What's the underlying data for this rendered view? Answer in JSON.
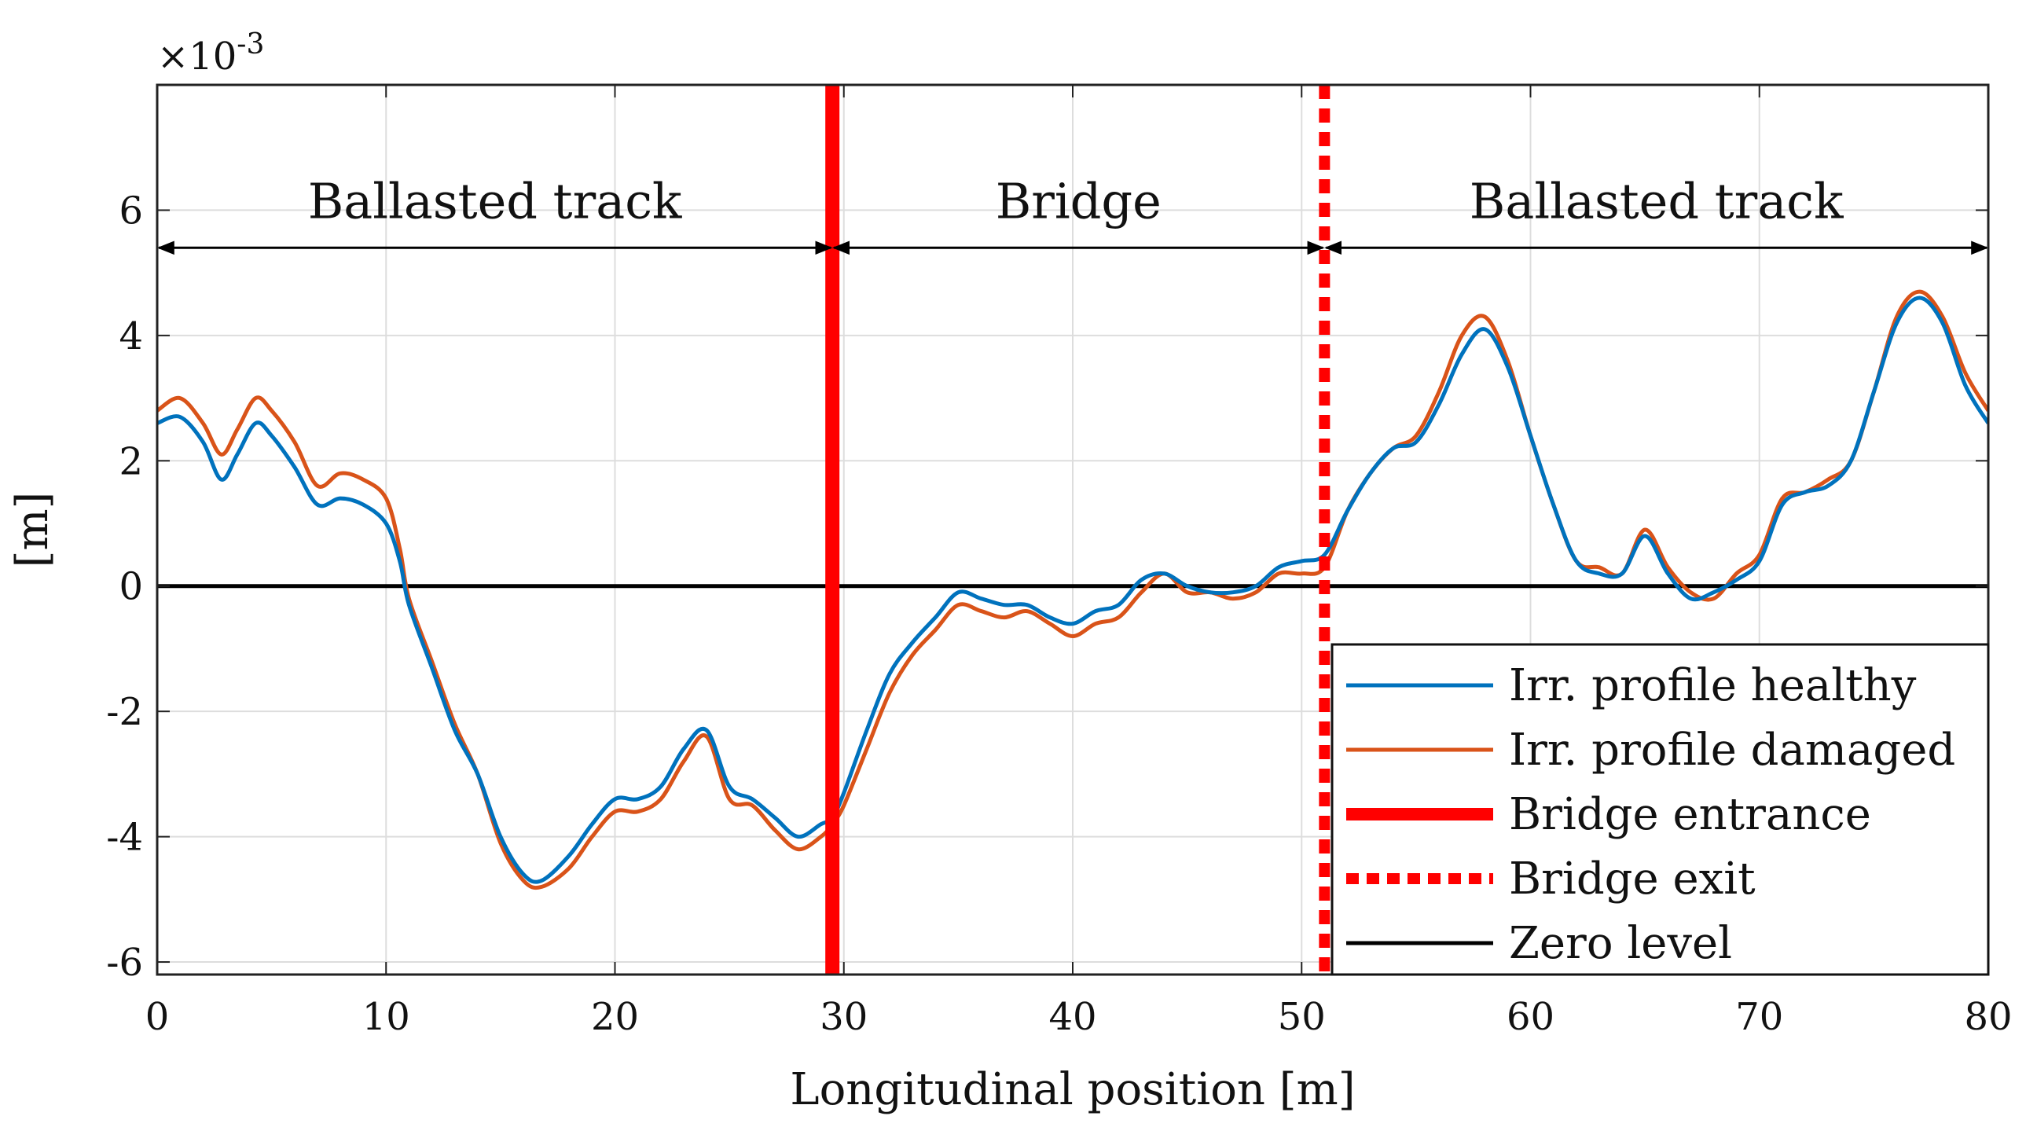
{
  "chart_data": {
    "type": "line",
    "title": "",
    "xlabel": "Longitudinal position [m]",
    "ylabel": "[m]",
    "y_multiplier_label": "×10",
    "y_multiplier_exponent": "-3",
    "xlim": [
      0,
      80
    ],
    "ylim": [
      -6.2,
      8
    ],
    "x_ticks": [
      0,
      10,
      20,
      30,
      40,
      50,
      60,
      70,
      80
    ],
    "x_tick_labels": [
      "0",
      "10",
      "20",
      "30",
      "40",
      "50",
      "60",
      "70",
      "80"
    ],
    "y_ticks": [
      -6,
      -4,
      -2,
      0,
      2,
      4,
      6
    ],
    "y_tick_labels": [
      "-6",
      "-4",
      "-2",
      "0",
      "2",
      "4",
      "6"
    ],
    "grid": true,
    "legend_position": "bottom-right",
    "colors": {
      "healthy": "#0072BD",
      "damaged": "#D95319",
      "bridge_marker": "#FF0000",
      "zero_level": "#000000",
      "grid": "#dddddd"
    },
    "series": [
      {
        "name": "Irr. profile healthy",
        "x": [
          0,
          1,
          2,
          2.8,
          3.5,
          4.3,
          5,
          6,
          7,
          8,
          9,
          10,
          10.6,
          11,
          12,
          13,
          14,
          15,
          16,
          16.8,
          18,
          19,
          20,
          21,
          22,
          23,
          24,
          25,
          26,
          27,
          28,
          29,
          29.5,
          30,
          31,
          32,
          33,
          34,
          35,
          36,
          37,
          38,
          39,
          40,
          41,
          42,
          43,
          44,
          45,
          46,
          47,
          48,
          49,
          50,
          51,
          52,
          53,
          54,
          55,
          56,
          57,
          58,
          59,
          60,
          61,
          62,
          63,
          64,
          65,
          66,
          67,
          68,
          69,
          70,
          71,
          72,
          73,
          74,
          75,
          76,
          77,
          78,
          79,
          80
        ],
        "values": [
          2.6,
          2.7,
          2.3,
          1.7,
          2.1,
          2.6,
          2.4,
          1.9,
          1.3,
          1.4,
          1.3,
          1.0,
          0.4,
          -0.3,
          -1.3,
          -2.3,
          -3.0,
          -4.0,
          -4.6,
          -4.7,
          -4.3,
          -3.8,
          -3.4,
          -3.4,
          -3.2,
          -2.6,
          -2.3,
          -3.2,
          -3.4,
          -3.7,
          -4.0,
          -3.8,
          -3.7,
          -3.3,
          -2.3,
          -1.4,
          -0.9,
          -0.5,
          -0.1,
          -0.2,
          -0.3,
          -0.3,
          -0.5,
          -0.6,
          -0.4,
          -0.3,
          0.1,
          0.2,
          0.0,
          -0.1,
          -0.1,
          0.0,
          0.3,
          0.4,
          0.5,
          1.2,
          1.8,
          2.2,
          2.3,
          2.9,
          3.7,
          4.1,
          3.5,
          2.4,
          1.3,
          0.4,
          0.2,
          0.2,
          0.8,
          0.2,
          -0.2,
          -0.1,
          0.1,
          0.4,
          1.3,
          1.5,
          1.6,
          2.0,
          3.1,
          4.2,
          4.6,
          4.2,
          3.2,
          2.6
        ]
      },
      {
        "name": "Irr. profile damaged",
        "x": [
          0,
          1,
          2,
          2.8,
          3.5,
          4.3,
          5,
          6,
          7,
          8,
          9,
          10,
          10.6,
          11,
          12,
          13,
          14,
          15,
          16,
          16.8,
          18,
          19,
          20,
          21,
          22,
          23,
          24,
          25,
          26,
          27,
          28,
          29,
          29.5,
          30,
          31,
          32,
          33,
          34,
          35,
          36,
          37,
          38,
          39,
          40,
          41,
          42,
          43,
          44,
          45,
          46,
          47,
          48,
          49,
          50,
          51,
          52,
          53,
          54,
          55,
          56,
          57,
          58,
          59,
          60,
          61,
          62,
          63,
          64,
          65,
          66,
          67,
          68,
          69,
          70,
          71,
          72,
          73,
          74,
          75,
          76,
          77,
          78,
          79,
          80
        ],
        "values": [
          2.8,
          3.0,
          2.6,
          2.1,
          2.5,
          3.0,
          2.8,
          2.3,
          1.6,
          1.8,
          1.7,
          1.4,
          0.6,
          -0.2,
          -1.2,
          -2.2,
          -3.0,
          -4.1,
          -4.7,
          -4.8,
          -4.5,
          -4.0,
          -3.6,
          -3.6,
          -3.4,
          -2.8,
          -2.4,
          -3.4,
          -3.5,
          -3.9,
          -4.2,
          -4.0,
          -3.8,
          -3.5,
          -2.6,
          -1.7,
          -1.1,
          -0.7,
          -0.3,
          -0.4,
          -0.5,
          -0.4,
          -0.6,
          -0.8,
          -0.6,
          -0.5,
          -0.1,
          0.2,
          -0.1,
          -0.1,
          -0.2,
          -0.1,
          0.2,
          0.2,
          0.3,
          1.2,
          1.8,
          2.2,
          2.4,
          3.1,
          4.0,
          4.3,
          3.6,
          2.4,
          1.3,
          0.4,
          0.3,
          0.2,
          0.9,
          0.3,
          -0.1,
          -0.2,
          0.2,
          0.5,
          1.4,
          1.5,
          1.7,
          2.0,
          3.1,
          4.3,
          4.7,
          4.3,
          3.4,
          2.8
        ]
      }
    ],
    "bridge_entrance_x": 29.5,
    "bridge_exit_x": 51,
    "zero_level_y": 0,
    "regions": [
      {
        "label": "Ballasted track",
        "x_start": 0,
        "x_end": 29.5,
        "y": 5.4
      },
      {
        "label": "Bridge",
        "x_start": 29.5,
        "x_end": 51,
        "y": 5.4
      },
      {
        "label": "Ballasted track",
        "x_start": 51,
        "x_end": 80,
        "y": 5.4
      }
    ],
    "legend": [
      {
        "label": "Irr. profile healthy",
        "style": "healthy"
      },
      {
        "label": "Irr. profile damaged",
        "style": "damaged"
      },
      {
        "label": "Bridge entrance",
        "style": "entrance"
      },
      {
        "label": "Bridge exit",
        "style": "exit"
      },
      {
        "label": "Zero level",
        "style": "zero"
      }
    ]
  }
}
